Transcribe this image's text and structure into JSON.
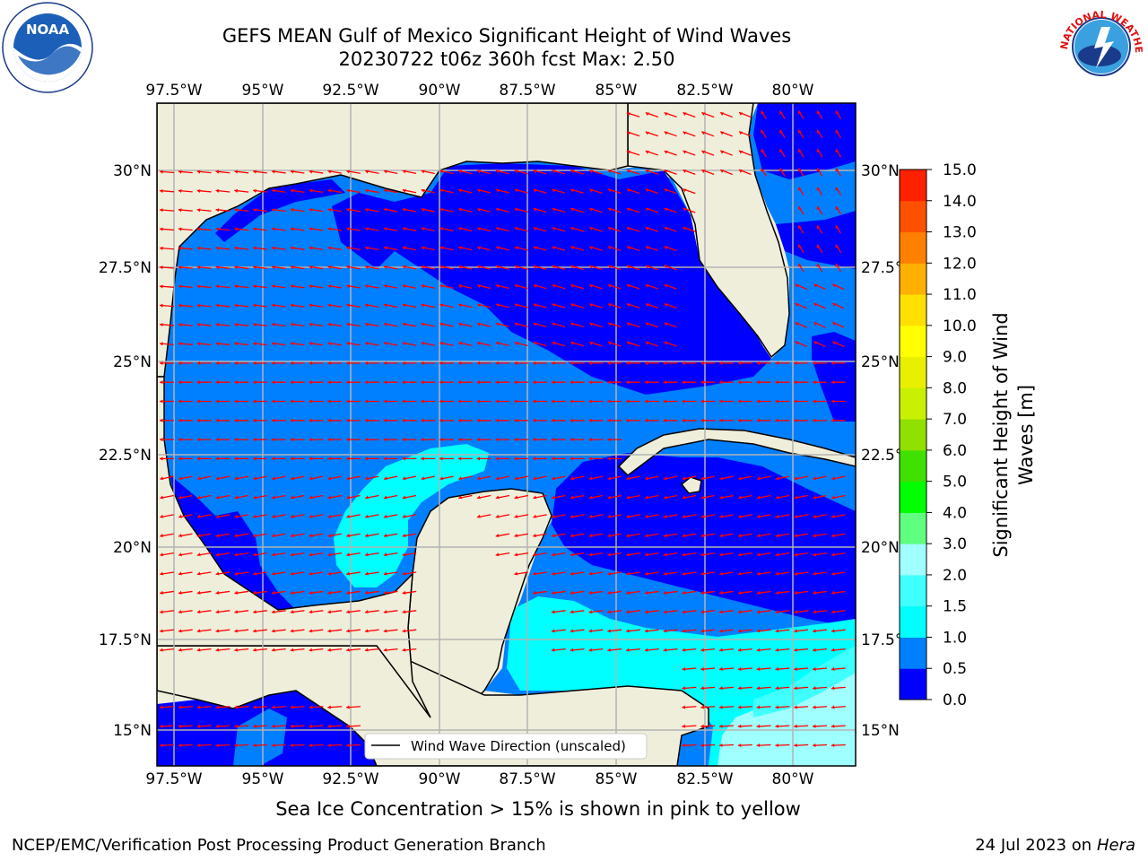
{
  "title": {
    "line1": "GEFS MEAN Gulf of Mexico Significant Height of Wind Waves",
    "line2": "20230722 t06z 360h fcst   Max: 2.50"
  },
  "map": {
    "lon_ticks": [
      "97.5°W",
      "95°W",
      "92.5°W",
      "90°W",
      "87.5°W",
      "85°W",
      "82.5°W",
      "80°W"
    ],
    "lat_ticks": [
      "30°N",
      "27.5°N",
      "25°N",
      "22.5°N",
      "20°N",
      "17.5°N",
      "15°N"
    ],
    "legend_label": "Wind Wave Direction (unscaled)",
    "colors": {
      "land": "#efeedb",
      "arrow": "#ff0000",
      "grid": "#b3b3b3"
    }
  },
  "colorbar": {
    "label": "Significant Height of Wind Waves [m]",
    "label_line1": "Significant Height of Wind",
    "label_line2": "Waves [m]",
    "tick_labels": [
      "0.0",
      "0.5",
      "1.0",
      "1.5",
      "2.0",
      "3.0",
      "4.0",
      "5.0",
      "6.0",
      "7.0",
      "8.0",
      "9.0",
      "10.0",
      "11.0",
      "12.0",
      "13.0",
      "14.0",
      "15.0"
    ],
    "colors": [
      "#0000ff",
      "#0080ff",
      "#00ffff",
      "#40ffff",
      "#a0ffff",
      "#60ff80",
      "#00ff00",
      "#40e000",
      "#90e000",
      "#c8f000",
      "#e8f000",
      "#ffff00",
      "#ffe000",
      "#ffb000",
      "#ff8000",
      "#ff5000",
      "#ff2000"
    ]
  },
  "annotations": {
    "sea_ice": "Sea Ice Concentration > 15% is shown in pink to yellow",
    "footer_left": "NCEP/EMC/Verification Post Processing Product Generation Branch",
    "footer_date": "24 Jul 2023 on ",
    "footer_machine": "Hera"
  },
  "logos": {
    "noaa_text": "NOAA",
    "nws_text": "NATIONAL WEATHER SERVICE"
  }
}
